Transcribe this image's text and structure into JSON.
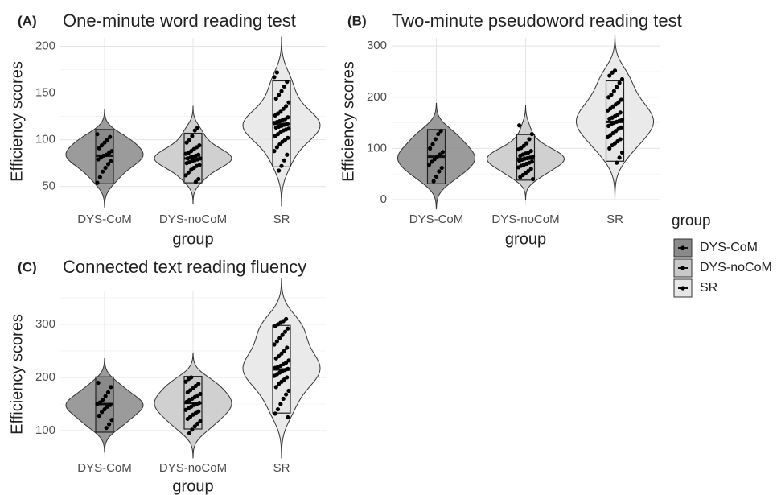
{
  "chart_data": [
    {
      "type": "violin",
      "label": "(A)",
      "title": "One-minute word reading test",
      "x_label": "group",
      "y_label": "Efficiency scores",
      "categories": [
        "DYS-CoM",
        "DYS-noCoM",
        "SR"
      ],
      "colors": [
        "#8a8a8a",
        "#c8c8c8",
        "#e6e6e6"
      ],
      "ylim": [
        30,
        209
      ],
      "yticks": [
        50,
        100,
        150,
        200
      ],
      "minor_grid": [
        75,
        125,
        175
      ],
      "groups": [
        {
          "box": [
            53,
            83,
            111
          ],
          "points": [
            54,
            60,
            66,
            70,
            74,
            77,
            79,
            81,
            83,
            84,
            86,
            88,
            91,
            94,
            97,
            100,
            103,
            106
          ]
        },
        {
          "box": [
            54,
            80,
            107
          ],
          "points": [
            55,
            58,
            62,
            65,
            68,
            70,
            72,
            73,
            75,
            76,
            77,
            78,
            79,
            80,
            80,
            81,
            82,
            83,
            84,
            85,
            86,
            88,
            90,
            92,
            94,
            97,
            100,
            104,
            110,
            113
          ]
        },
        {
          "box": [
            71,
            117,
            163
          ],
          "points": [
            67,
            72,
            78,
            84,
            88,
            92,
            95,
            98,
            100,
            102,
            104,
            106,
            108,
            110,
            111,
            112,
            113,
            114,
            115,
            116,
            117,
            118,
            119,
            120,
            121,
            122,
            124,
            126,
            128,
            130,
            133,
            136,
            140,
            144,
            148,
            152,
            157,
            162,
            167,
            172
          ]
        }
      ]
    },
    {
      "type": "violin",
      "label": "(B)",
      "title": "Two-minute pseudoword reading test",
      "x_label": "group",
      "y_label": "Efficiency scores",
      "categories": [
        "DYS-CoM",
        "DYS-noCoM",
        "SR"
      ],
      "colors": [
        "#8a8a8a",
        "#c8c8c8",
        "#e6e6e6"
      ],
      "ylim": [
        -11,
        316
      ],
      "yticks": [
        0,
        100,
        200,
        300
      ],
      "minor_grid": [
        50,
        150,
        250
      ],
      "groups": [
        {
          "box": [
            31,
            84,
            137
          ],
          "points": [
            36,
            45,
            55,
            62,
            68,
            74,
            79,
            84,
            88,
            93,
            100,
            108,
            118,
            128,
            134
          ]
        },
        {
          "box": [
            38,
            80,
            127
          ],
          "points": [
            40,
            44,
            48,
            52,
            56,
            60,
            63,
            66,
            68,
            70,
            72,
            74,
            76,
            78,
            80,
            81,
            82,
            84,
            86,
            88,
            90,
            92,
            95,
            98,
            101,
            105,
            110,
            118,
            128,
            145
          ]
        },
        {
          "box": [
            75,
            152,
            232
          ],
          "points": [
            72,
            82,
            92,
            100,
            106,
            110,
            114,
            118,
            122,
            126,
            130,
            134,
            138,
            141,
            144,
            147,
            150,
            152,
            154,
            156,
            158,
            160,
            163,
            166,
            170,
            174,
            178,
            182,
            186,
            190,
            195,
            200,
            205,
            212,
            220,
            228,
            235,
            242,
            248,
            252
          ]
        }
      ]
    },
    {
      "type": "violin",
      "label": "(C)",
      "title": "Connected text reading fluency",
      "x_label": "group",
      "y_label": "Efficiency scores",
      "categories": [
        "DYS-CoM",
        "DYS-noCoM",
        "SR"
      ],
      "colors": [
        "#8a8a8a",
        "#c8c8c8",
        "#e6e6e6"
      ],
      "ylim": [
        50,
        362
      ],
      "yticks": [
        100,
        200,
        300
      ],
      "minor_grid": [
        150,
        250,
        350
      ],
      "groups": [
        {
          "box": [
            97,
            150,
            201
          ],
          "points": [
            105,
            112,
            120,
            128,
            135,
            140,
            145,
            148,
            150,
            153,
            158,
            165,
            172,
            182,
            190
          ]
        },
        {
          "box": [
            103,
            152,
            202
          ],
          "points": [
            95,
            102,
            108,
            113,
            118,
            122,
            126,
            130,
            133,
            136,
            139,
            142,
            145,
            148,
            150,
            152,
            154,
            157,
            160,
            163,
            166,
            169,
            172,
            176,
            180,
            184,
            188,
            192,
            197,
            200
          ]
        },
        {
          "box": [
            133,
            215,
            298
          ],
          "points": [
            125,
            132,
            140,
            150,
            160,
            168,
            175,
            182,
            188,
            192,
            196,
            200,
            203,
            206,
            209,
            212,
            214,
            216,
            218,
            220,
            222,
            225,
            228,
            232,
            236,
            240,
            245,
            250,
            256,
            262,
            268,
            274,
            280,
            286,
            292,
            297,
            300,
            303,
            306,
            310
          ]
        }
      ]
    }
  ],
  "legend": {
    "title": "group",
    "entries": [
      "DYS-CoM",
      "DYS-noCoM",
      "SR"
    ],
    "colors": [
      "#8a8a8a",
      "#c8c8c8",
      "#e6e6e6"
    ]
  }
}
